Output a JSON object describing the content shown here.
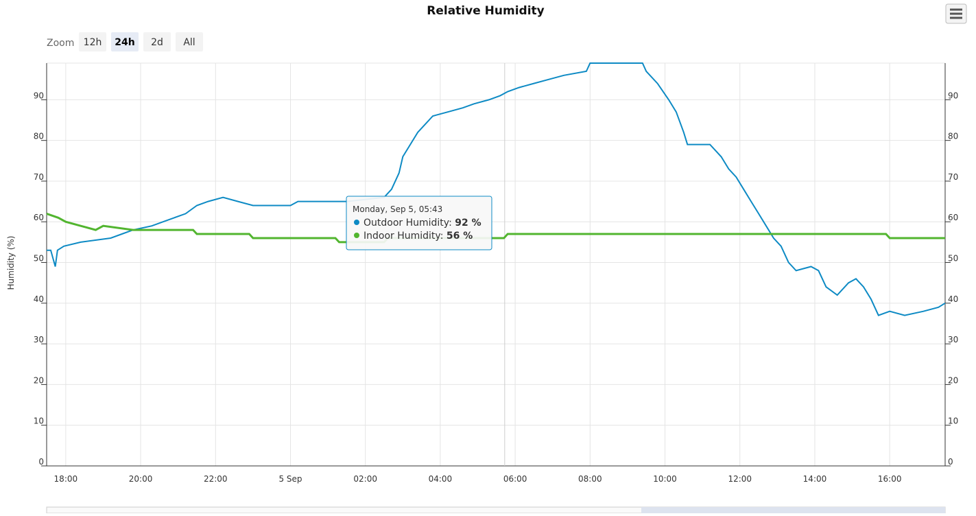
{
  "chart_data": {
    "type": "line",
    "title": "Relative Humidity",
    "y_axis_label": "Humidity (%)",
    "zoom": {
      "label": "Zoom",
      "buttons": [
        "12h",
        "24h",
        "2d",
        "All"
      ],
      "selected": 1
    },
    "xlim": [
      17.49,
      41.48
    ],
    "xticks": [
      {
        "value": 18,
        "label": "18:00"
      },
      {
        "value": 20,
        "label": "20:00"
      },
      {
        "value": 22,
        "label": "22:00"
      },
      {
        "value": 24,
        "label": "5 Sep"
      },
      {
        "value": 26,
        "label": "02:00"
      },
      {
        "value": 28,
        "label": "04:00"
      },
      {
        "value": 30,
        "label": "06:00"
      },
      {
        "value": 32,
        "label": "08:00"
      },
      {
        "value": 34,
        "label": "10:00"
      },
      {
        "value": 36,
        "label": "12:00"
      },
      {
        "value": 38,
        "label": "14:00"
      },
      {
        "value": 40,
        "label": "16:00"
      }
    ],
    "ylim": [
      0,
      99
    ],
    "yticks": [
      0,
      10,
      20,
      30,
      40,
      50,
      60,
      70,
      80,
      90
    ],
    "grid": true,
    "series": [
      {
        "name": "Outdoor Humidity",
        "color": "#0d8ac4",
        "x": [
          17.49,
          17.6,
          17.72,
          17.78,
          17.95,
          18.4,
          19.2,
          19.5,
          19.8,
          20.3,
          20.6,
          20.9,
          21.2,
          21.5,
          21.8,
          22.2,
          22.6,
          23.0,
          24.0,
          24.2,
          25.5,
          26.5,
          26.7,
          26.9,
          27.0,
          27.2,
          27.4,
          27.6,
          27.8,
          28.2,
          28.6,
          28.9,
          29.3,
          29.6,
          29.8,
          30.1,
          30.5,
          30.9,
          31.3,
          31.9,
          32.0,
          33.4,
          33.5,
          33.8,
          34.1,
          34.3,
          34.5,
          34.6,
          35.2,
          35.5,
          35.7,
          35.9,
          36.1,
          36.3,
          36.5,
          36.7,
          36.9,
          37.1,
          37.3,
          37.5,
          37.9,
          38.1,
          38.3,
          38.6,
          38.9,
          39.1,
          39.3,
          39.5,
          39.7,
          40.0,
          40.4,
          40.9,
          41.3,
          41.48
        ],
        "values": [
          53,
          53,
          49,
          53,
          54,
          55,
          56,
          57,
          58,
          59,
          60,
          61,
          62,
          64,
          65,
          66,
          65,
          64,
          64,
          65,
          65,
          66,
          68,
          72,
          76,
          79,
          82,
          84,
          86,
          87,
          88,
          89,
          90,
          91,
          92,
          93,
          94,
          95,
          96,
          97,
          99,
          99,
          97,
          94,
          90,
          87,
          82,
          79,
          79,
          76,
          73,
          71,
          68,
          65,
          62,
          59,
          56,
          54,
          50,
          48,
          49,
          48,
          44,
          42,
          45,
          46,
          44,
          41,
          37,
          38,
          37,
          38,
          39,
          40
        ]
      },
      {
        "name": "Indoor Humidity",
        "color": "#52b52f",
        "x": [
          17.49,
          17.8,
          18.0,
          18.4,
          18.8,
          19.0,
          19.8,
          21.4,
          21.5,
          22.9,
          23.0,
          25.2,
          25.3,
          26.5,
          26.6,
          29.7,
          29.8,
          39.9,
          40.0,
          41.48
        ],
        "values": [
          62,
          61,
          60,
          59,
          58,
          59,
          58,
          58,
          57,
          57,
          56,
          56,
          55,
          55,
          56,
          56,
          57,
          57,
          56,
          56
        ]
      }
    ],
    "tooltip": {
      "header": "Monday, Sep 5, 05:43",
      "x": 29.72,
      "items": [
        {
          "name": "Outdoor Humidity",
          "value": "92 %"
        },
        {
          "name": "Indoor Humidity",
          "value": "56 %"
        }
      ]
    }
  }
}
